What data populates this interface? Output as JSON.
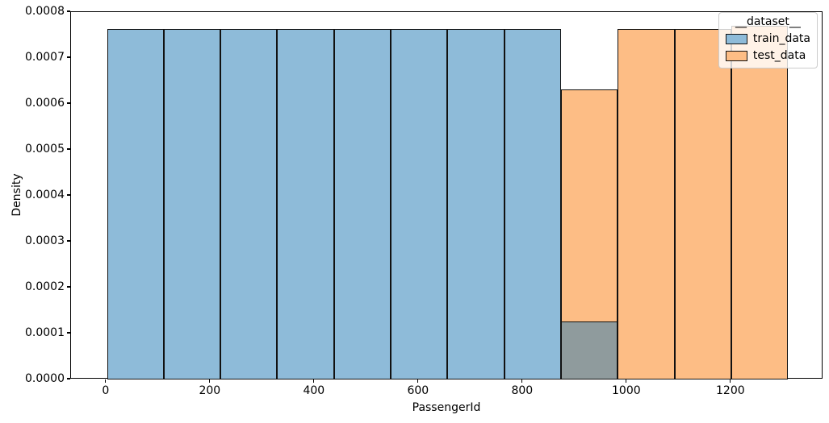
{
  "chart_data": {
    "type": "bar",
    "subtype": "histogram",
    "title": "",
    "xlabel": "PassengerId",
    "ylabel": "Density",
    "stat": "density",
    "grid": false,
    "legend_position": "upper right",
    "legend": {
      "title": "__dataset__",
      "entries": [
        "train_data",
        "test_data"
      ]
    },
    "bin_edges": [
      1,
      110,
      219,
      328,
      437,
      546,
      655,
      764,
      873,
      982,
      1091,
      1200,
      1309
    ],
    "series": [
      {
        "name": "train_data",
        "color": "#8ebbd9",
        "values": [
          0.000764,
          0.000764,
          0.000764,
          0.000764,
          0.000764,
          0.000764,
          0.000764,
          0.000764,
          0.000126,
          0,
          0,
          0
        ]
      },
      {
        "name": "test_data",
        "color": "#fdbd85",
        "values": [
          0,
          0,
          0,
          0,
          0,
          0,
          0,
          0,
          0.000631,
          0.000764,
          0.000764,
          0.000771
        ]
      }
    ],
    "overlap_color": "#8f9b9d",
    "edge_color": "#111111",
    "xlim": [
      -68,
      1377
    ],
    "ylim": [
      0,
      0.0008
    ],
    "x_ticks": [
      0,
      200,
      400,
      600,
      800,
      1000,
      1200
    ],
    "y_ticks": [
      "0.0000",
      "0.0001",
      "0.0002",
      "0.0003",
      "0.0004",
      "0.0005",
      "0.0006",
      "0.0007",
      "0.0008"
    ]
  }
}
